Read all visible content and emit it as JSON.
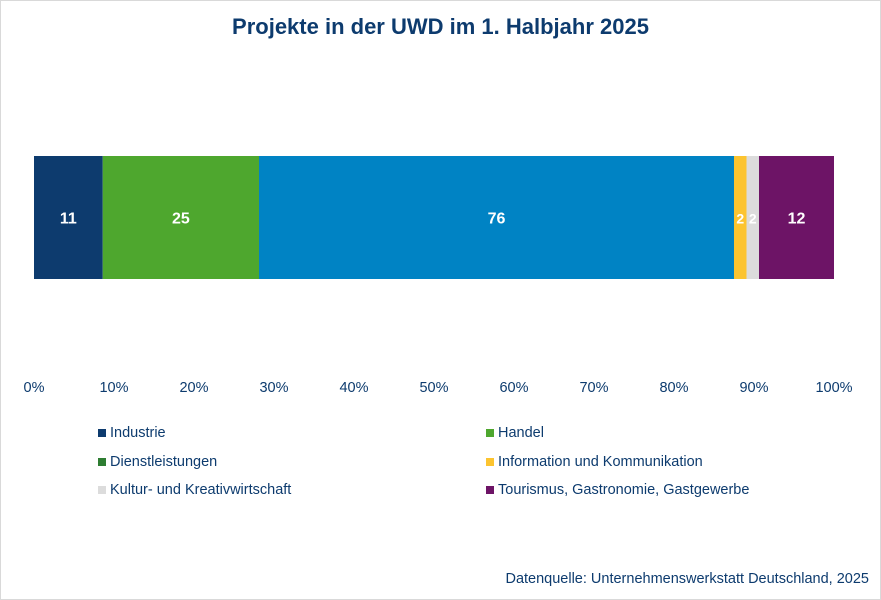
{
  "chart_data": {
    "type": "bar",
    "orientation": "horizontal",
    "stacked": "percent",
    "title": "Projekte in der UWD im 1. Halbjahr 2025",
    "categories": [
      ""
    ],
    "series": [
      {
        "name": "Industrie",
        "values": [
          11
        ],
        "color": "#0d3b6e",
        "label": "11"
      },
      {
        "name": "Handel",
        "values": [
          25
        ],
        "color": "#4ea72e",
        "label": "25"
      },
      {
        "name": "Dienstleistungen",
        "values": [
          76
        ],
        "color": "#0083c4",
        "label": "76"
      },
      {
        "name": "Information und Kommunikation",
        "values": [
          2
        ],
        "color": "#fcc430",
        "label": "2"
      },
      {
        "name": "Kultur- und Kreativwirtschaft",
        "values": [
          2
        ],
        "color": "#dcdcdc",
        "label": "2"
      },
      {
        "name": "Tourismus, Gastronomie, Gastgewerbe",
        "values": [
          12
        ],
        "color": "#6d1466",
        "label": "12"
      }
    ],
    "xticks": [
      "0%",
      "10%",
      "20%",
      "30%",
      "40%",
      "50%",
      "60%",
      "70%",
      "80%",
      "90%",
      "100%"
    ],
    "xlim": [
      0,
      100
    ],
    "grid": false,
    "legend": [
      {
        "name": "Industrie",
        "color": "#0d3b6e"
      },
      {
        "name": "Handel",
        "color": "#4ea72e"
      },
      {
        "name": "Dienstleistungen",
        "color": "#2e7d32"
      },
      {
        "name": "Information und Kommunikation",
        "color": "#fcc430"
      },
      {
        "name": "Kultur- und Kreativwirtschaft",
        "color": "#dcdcdc"
      },
      {
        "name": "Tourismus, Gastronomie, Gastgewerbe",
        "color": "#6d1466"
      }
    ],
    "legend_position": "bottom"
  },
  "source": "Datenquelle: Unternehmenswerkstatt Deutschland, 2025"
}
